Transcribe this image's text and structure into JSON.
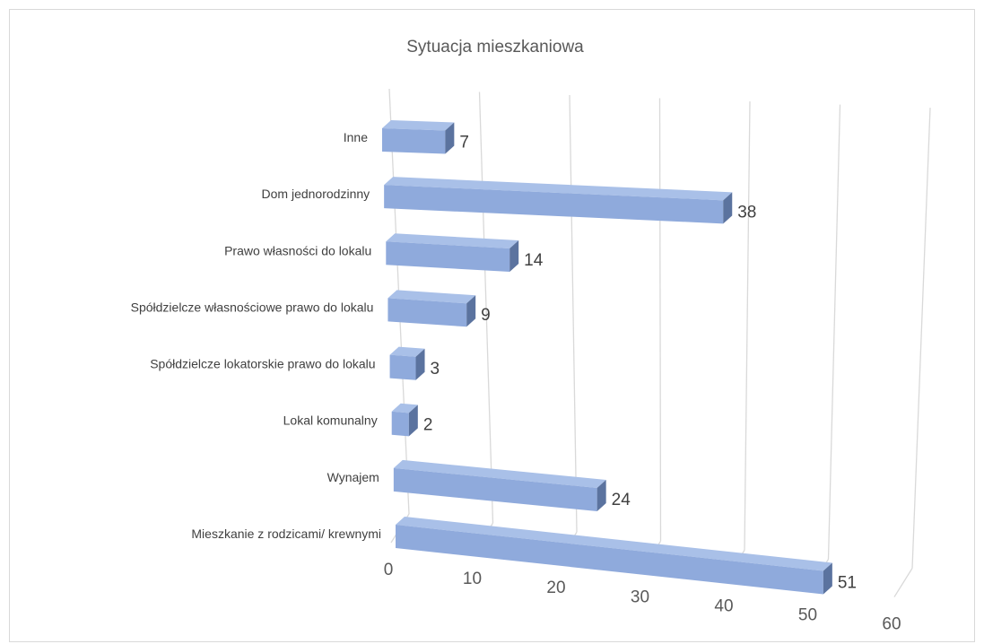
{
  "chart_data": {
    "type": "bar",
    "orientation": "horizontal",
    "style": "3d",
    "title": "Sytuacja mieszkaniowa",
    "categories": [
      "Inne",
      "Dom jednorodzinny",
      "Prawo własności do lokalu",
      "Spółdzielcze własnościowe prawo do lokalu",
      "Spółdzielcze lokatorskie prawo do lokalu",
      "Lokal komunalny",
      "Wynajem",
      "Mieszkanie z rodzicami/ krewnymi"
    ],
    "values": [
      7,
      38,
      14,
      9,
      3,
      2,
      24,
      51
    ],
    "value_labels": [
      "7",
      "38",
      "14",
      "9",
      "3",
      "2",
      "24",
      "51"
    ],
    "xlim": [
      0,
      60
    ],
    "x_ticks": [
      "0",
      "10",
      "20",
      "30",
      "40",
      "50",
      "60"
    ],
    "grid": true,
    "legend": "none",
    "colors": {
      "bar_front": "#8faadc",
      "bar_top": "#a9c0e8",
      "bar_side": "#5b739f",
      "grid": "#d9d9d9"
    }
  }
}
